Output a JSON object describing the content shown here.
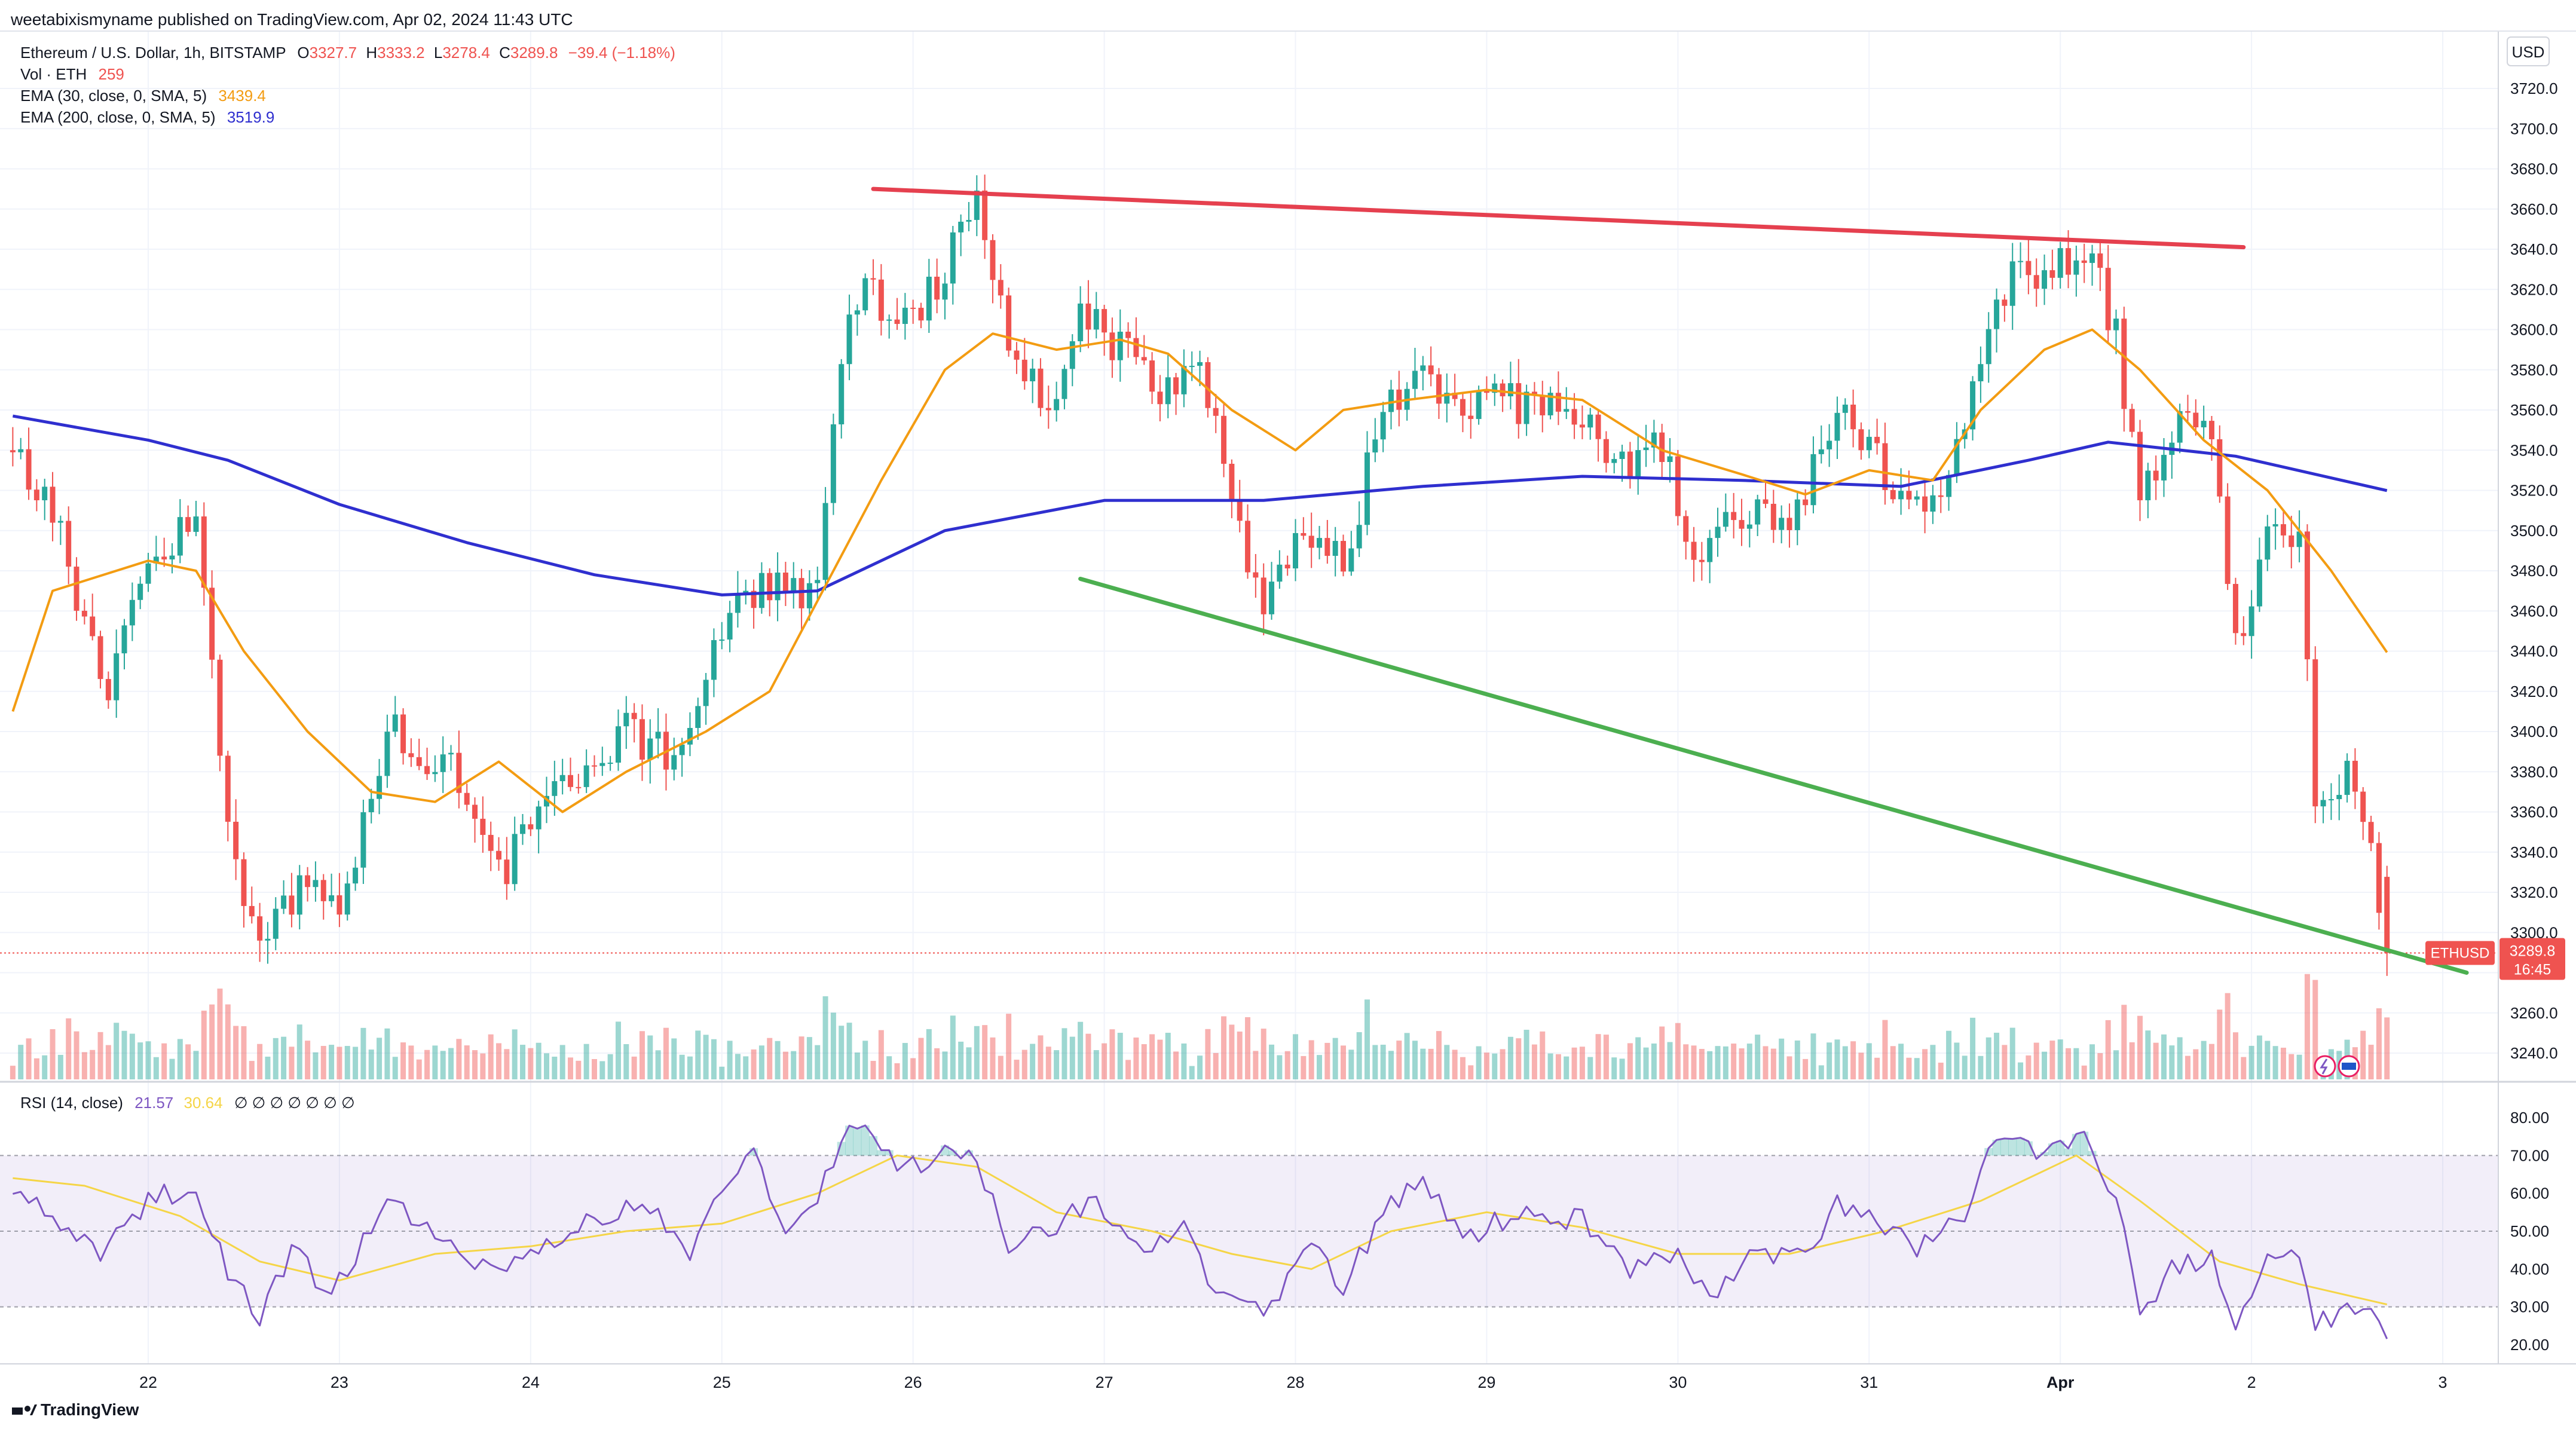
{
  "header": {
    "published": "weetabixismyname published on TradingView.com, Apr 02, 2024 11:43 UTC"
  },
  "legend": {
    "symbol": "Ethereum / U.S. Dollar, 1h, BITSTAMP",
    "o_label": "O",
    "o": "3327.7",
    "h_label": "H",
    "h": "3333.2",
    "l_label": "L",
    "l": "3278.4",
    "c_label": "C",
    "c": "3289.8",
    "change": "−39.4 (−1.18%)",
    "vol_label": "Vol · ETH",
    "vol": "259",
    "ema30_label": "EMA (30, close, 0, SMA, 5)",
    "ema30": "3439.4",
    "ema200_label": "EMA (200, close, 0, SMA, 5)",
    "ema200": "3519.9",
    "rsi_label": "RSI (14, close)",
    "rsi": "21.57",
    "rsi_ma": "30.64",
    "rsi_na": "∅ ∅ ∅ ∅ ∅ ∅ ∅"
  },
  "price_badge": {
    "symbol": "ETHUSD",
    "price": "3289.8",
    "countdown": "16:45"
  },
  "axis": {
    "currency": "USD"
  },
  "footer": {
    "brand": "TradingView"
  },
  "colors": {
    "up": "#26a69a",
    "down": "#ef5350",
    "ema30": "#f39c12",
    "ema200": "#2f2fcf",
    "resistance": "#e5404f",
    "support": "#4caf50",
    "rsi": "#7e57c2",
    "rsi_ma": "#f5d547"
  },
  "chart_data": {
    "type": "candlestick",
    "timeframe": "1h",
    "ylim": [
      3220,
      3740
    ],
    "y_ticks": [
      3240,
      3260,
      3280,
      3300,
      3320,
      3340,
      3360,
      3380,
      3400,
      3420,
      3440,
      3460,
      3480,
      3500,
      3520,
      3540,
      3560,
      3580,
      3600,
      3620,
      3640,
      3660,
      3680,
      3700,
      3720
    ],
    "x_ticks": [
      {
        "label": "22",
        "hour": 0
      },
      {
        "label": "23",
        "hour": 24
      },
      {
        "label": "24",
        "hour": 48
      },
      {
        "label": "25",
        "hour": 72
      },
      {
        "label": "26",
        "hour": 96
      },
      {
        "label": "27",
        "hour": 120
      },
      {
        "label": "28",
        "hour": 144
      },
      {
        "label": "29",
        "hour": 168
      },
      {
        "label": "30",
        "hour": 192
      },
      {
        "label": "31",
        "hour": 216
      },
      {
        "label": "Apr",
        "hour": 240
      },
      {
        "label": "2",
        "hour": 264
      },
      {
        "label": "3",
        "hour": 288
      }
    ],
    "key_points": [
      {
        "hour": -17,
        "price": 3540
      },
      {
        "hour": -12,
        "price": 3510
      },
      {
        "hour": -5,
        "price": 3415
      },
      {
        "hour": 0,
        "price": 3490
      },
      {
        "hour": 6,
        "price": 3500
      },
      {
        "hour": 10,
        "price": 3350
      },
      {
        "hour": 14,
        "price": 3295
      },
      {
        "hour": 20,
        "price": 3330
      },
      {
        "hour": 24,
        "price": 3310
      },
      {
        "hour": 30,
        "price": 3400
      },
      {
        "hour": 38,
        "price": 3380
      },
      {
        "hour": 44,
        "price": 3330
      },
      {
        "hour": 52,
        "price": 3370
      },
      {
        "hour": 60,
        "price": 3400
      },
      {
        "hour": 66,
        "price": 3385
      },
      {
        "hour": 71,
        "price": 3440
      },
      {
        "hour": 76,
        "price": 3470
      },
      {
        "hour": 84,
        "price": 3470
      },
      {
        "hour": 87,
        "price": 3590
      },
      {
        "hour": 90,
        "price": 3630
      },
      {
        "hour": 94,
        "price": 3600
      },
      {
        "hour": 100,
        "price": 3630
      },
      {
        "hour": 104,
        "price": 3660
      },
      {
        "hour": 108,
        "price": 3600
      },
      {
        "hour": 113,
        "price": 3560
      },
      {
        "hour": 117,
        "price": 3610
      },
      {
        "hour": 122,
        "price": 3590
      },
      {
        "hour": 127,
        "price": 3570
      },
      {
        "hour": 132,
        "price": 3585
      },
      {
        "hour": 136,
        "price": 3510
      },
      {
        "hour": 140,
        "price": 3465
      },
      {
        "hour": 145,
        "price": 3500
      },
      {
        "hour": 150,
        "price": 3480
      },
      {
        "hour": 155,
        "price": 3560
      },
      {
        "hour": 160,
        "price": 3585
      },
      {
        "hour": 165,
        "price": 3555
      },
      {
        "hour": 170,
        "price": 3565
      },
      {
        "hour": 180,
        "price": 3560
      },
      {
        "hour": 185,
        "price": 3530
      },
      {
        "hour": 190,
        "price": 3545
      },
      {
        "hour": 194,
        "price": 3480
      },
      {
        "hour": 200,
        "price": 3510
      },
      {
        "hour": 206,
        "price": 3495
      },
      {
        "hour": 212,
        "price": 3560
      },
      {
        "hour": 218,
        "price": 3530
      },
      {
        "hour": 222,
        "price": 3510
      },
      {
        "hour": 228,
        "price": 3545
      },
      {
        "hour": 232,
        "price": 3620
      },
      {
        "hour": 238,
        "price": 3630
      },
      {
        "hour": 243,
        "price": 3640
      },
      {
        "hour": 247,
        "price": 3600
      },
      {
        "hour": 250,
        "price": 3510
      },
      {
        "hour": 254,
        "price": 3550
      },
      {
        "hour": 259,
        "price": 3545
      },
      {
        "hour": 262,
        "price": 3440
      },
      {
        "hour": 266,
        "price": 3500
      },
      {
        "hour": 270,
        "price": 3495
      },
      {
        "hour": 272,
        "price": 3370
      },
      {
        "hour": 276,
        "price": 3375
      },
      {
        "hour": 279,
        "price": 3340
      },
      {
        "hour": 281,
        "price": 3289.8
      }
    ],
    "last": {
      "open": 3327.7,
      "high": 3333.2,
      "low": 3278.4,
      "close": 3289.8
    },
    "ema30_points": [
      {
        "hour": -17,
        "price": 3410
      },
      {
        "hour": -12,
        "price": 3470
      },
      {
        "hour": 0,
        "price": 3485
      },
      {
        "hour": 6,
        "price": 3480
      },
      {
        "hour": 12,
        "price": 3440
      },
      {
        "hour": 20,
        "price": 3400
      },
      {
        "hour": 28,
        "price": 3370
      },
      {
        "hour": 36,
        "price": 3365
      },
      {
        "hour": 44,
        "price": 3385
      },
      {
        "hour": 52,
        "price": 3360
      },
      {
        "hour": 60,
        "price": 3380
      },
      {
        "hour": 70,
        "price": 3400
      },
      {
        "hour": 78,
        "price": 3420
      },
      {
        "hour": 86,
        "price": 3480
      },
      {
        "hour": 92,
        "price": 3525
      },
      {
        "hour": 100,
        "price": 3580
      },
      {
        "hour": 106,
        "price": 3598
      },
      {
        "hour": 114,
        "price": 3590
      },
      {
        "hour": 122,
        "price": 3595
      },
      {
        "hour": 128,
        "price": 3588
      },
      {
        "hour": 136,
        "price": 3560
      },
      {
        "hour": 144,
        "price": 3540
      },
      {
        "hour": 150,
        "price": 3560
      },
      {
        "hour": 158,
        "price": 3565
      },
      {
        "hour": 168,
        "price": 3570
      },
      {
        "hour": 180,
        "price": 3565
      },
      {
        "hour": 190,
        "price": 3540
      },
      {
        "hour": 200,
        "price": 3528
      },
      {
        "hour": 208,
        "price": 3518
      },
      {
        "hour": 216,
        "price": 3530
      },
      {
        "hour": 224,
        "price": 3525
      },
      {
        "hour": 230,
        "price": 3560
      },
      {
        "hour": 238,
        "price": 3590
      },
      {
        "hour": 244,
        "price": 3600
      },
      {
        "hour": 250,
        "price": 3580
      },
      {
        "hour": 258,
        "price": 3545
      },
      {
        "hour": 266,
        "price": 3520
      },
      {
        "hour": 274,
        "price": 3480
      },
      {
        "hour": 281,
        "price": 3439.4
      }
    ],
    "ema200_points": [
      {
        "hour": -17,
        "price": 3557
      },
      {
        "hour": 0,
        "price": 3545
      },
      {
        "hour": 10,
        "price": 3535
      },
      {
        "hour": 24,
        "price": 3513
      },
      {
        "hour": 40,
        "price": 3494
      },
      {
        "hour": 56,
        "price": 3478
      },
      {
        "hour": 72,
        "price": 3468
      },
      {
        "hour": 84,
        "price": 3470
      },
      {
        "hour": 100,
        "price": 3500
      },
      {
        "hour": 120,
        "price": 3515
      },
      {
        "hour": 140,
        "price": 3515
      },
      {
        "hour": 160,
        "price": 3522
      },
      {
        "hour": 180,
        "price": 3527
      },
      {
        "hour": 200,
        "price": 3525
      },
      {
        "hour": 220,
        "price": 3522
      },
      {
        "hour": 236,
        "price": 3535
      },
      {
        "hour": 246,
        "price": 3544
      },
      {
        "hour": 262,
        "price": 3537
      },
      {
        "hour": 281,
        "price": 3519.9
      }
    ],
    "trendlines": [
      {
        "name": "resistance",
        "from": {
          "hour": 91,
          "price": 3670
        },
        "to": {
          "hour": 263,
          "price": 3641
        }
      },
      {
        "name": "support",
        "from": {
          "hour": 117,
          "price": 3476
        },
        "to": {
          "hour": 291,
          "price": 3280
        }
      }
    ],
    "rsi": {
      "ylim": [
        10,
        85
      ],
      "ticks": [
        20,
        30,
        40,
        50,
        60,
        70,
        80
      ],
      "band": [
        30,
        70
      ],
      "midline": 50,
      "last": 21.57,
      "ma_last": 30.64,
      "points": [
        {
          "hour": -17,
          "value": 62
        },
        {
          "hour": -12,
          "value": 55
        },
        {
          "hour": -6,
          "value": 43
        },
        {
          "hour": 0,
          "value": 58
        },
        {
          "hour": 6,
          "value": 62
        },
        {
          "hour": 10,
          "value": 40
        },
        {
          "hour": 14,
          "value": 27
        },
        {
          "hour": 18,
          "value": 45
        },
        {
          "hour": 23,
          "value": 33
        },
        {
          "hour": 30,
          "value": 58
        },
        {
          "hour": 36,
          "value": 50
        },
        {
          "hour": 44,
          "value": 38
        },
        {
          "hour": 50,
          "value": 47
        },
        {
          "hour": 56,
          "value": 53
        },
        {
          "hour": 62,
          "value": 58
        },
        {
          "hour": 68,
          "value": 43
        },
        {
          "hour": 72,
          "value": 61
        },
        {
          "hour": 76,
          "value": 70
        },
        {
          "hour": 80,
          "value": 52
        },
        {
          "hour": 84,
          "value": 58
        },
        {
          "hour": 87,
          "value": 75
        },
        {
          "hour": 90,
          "value": 80
        },
        {
          "hour": 94,
          "value": 65
        },
        {
          "hour": 100,
          "value": 70
        },
        {
          "hour": 104,
          "value": 69
        },
        {
          "hour": 108,
          "value": 45
        },
        {
          "hour": 114,
          "value": 52
        },
        {
          "hour": 119,
          "value": 58
        },
        {
          "hour": 124,
          "value": 45
        },
        {
          "hour": 130,
          "value": 52
        },
        {
          "hour": 134,
          "value": 33
        },
        {
          "hour": 140,
          "value": 28
        },
        {
          "hour": 146,
          "value": 45
        },
        {
          "hour": 150,
          "value": 36
        },
        {
          "hour": 156,
          "value": 58
        },
        {
          "hour": 160,
          "value": 62
        },
        {
          "hour": 166,
          "value": 49
        },
        {
          "hour": 172,
          "value": 55
        },
        {
          "hour": 180,
          "value": 53
        },
        {
          "hour": 186,
          "value": 40
        },
        {
          "hour": 192,
          "value": 44
        },
        {
          "hour": 196,
          "value": 33
        },
        {
          "hour": 202,
          "value": 45
        },
        {
          "hour": 208,
          "value": 42
        },
        {
          "hour": 212,
          "value": 58
        },
        {
          "hour": 218,
          "value": 52
        },
        {
          "hour": 222,
          "value": 45
        },
        {
          "hour": 228,
          "value": 55
        },
        {
          "hour": 232,
          "value": 76
        },
        {
          "hour": 238,
          "value": 70
        },
        {
          "hour": 243,
          "value": 74
        },
        {
          "hour": 247,
          "value": 60
        },
        {
          "hour": 250,
          "value": 28
        },
        {
          "hour": 254,
          "value": 40
        },
        {
          "hour": 259,
          "value": 43
        },
        {
          "hour": 262,
          "value": 26
        },
        {
          "hour": 266,
          "value": 45
        },
        {
          "hour": 270,
          "value": 44
        },
        {
          "hour": 272,
          "value": 25
        },
        {
          "hour": 276,
          "value": 30
        },
        {
          "hour": 279,
          "value": 27
        },
        {
          "hour": 281,
          "value": 21.57
        }
      ],
      "ma_points": [
        {
          "hour": -17,
          "value": 64
        },
        {
          "hour": -8,
          "value": 62
        },
        {
          "hour": 4,
          "value": 54
        },
        {
          "hour": 14,
          "value": 42
        },
        {
          "hour": 24,
          "value": 37
        },
        {
          "hour": 36,
          "value": 44
        },
        {
          "hour": 48,
          "value": 46
        },
        {
          "hour": 60,
          "value": 50
        },
        {
          "hour": 72,
          "value": 52
        },
        {
          "hour": 84,
          "value": 60
        },
        {
          "hour": 94,
          "value": 70
        },
        {
          "hour": 104,
          "value": 67
        },
        {
          "hour": 114,
          "value": 55
        },
        {
          "hour": 126,
          "value": 50
        },
        {
          "hour": 136,
          "value": 44
        },
        {
          "hour": 146,
          "value": 40
        },
        {
          "hour": 156,
          "value": 50
        },
        {
          "hour": 168,
          "value": 55
        },
        {
          "hour": 180,
          "value": 51
        },
        {
          "hour": 192,
          "value": 44
        },
        {
          "hour": 206,
          "value": 44
        },
        {
          "hour": 218,
          "value": 50
        },
        {
          "hour": 230,
          "value": 58
        },
        {
          "hour": 242,
          "value": 70
        },
        {
          "hour": 250,
          "value": 58
        },
        {
          "hour": 260,
          "value": 42
        },
        {
          "hour": 270,
          "value": 36
        },
        {
          "hour": 281,
          "value": 30.64
        }
      ]
    }
  }
}
